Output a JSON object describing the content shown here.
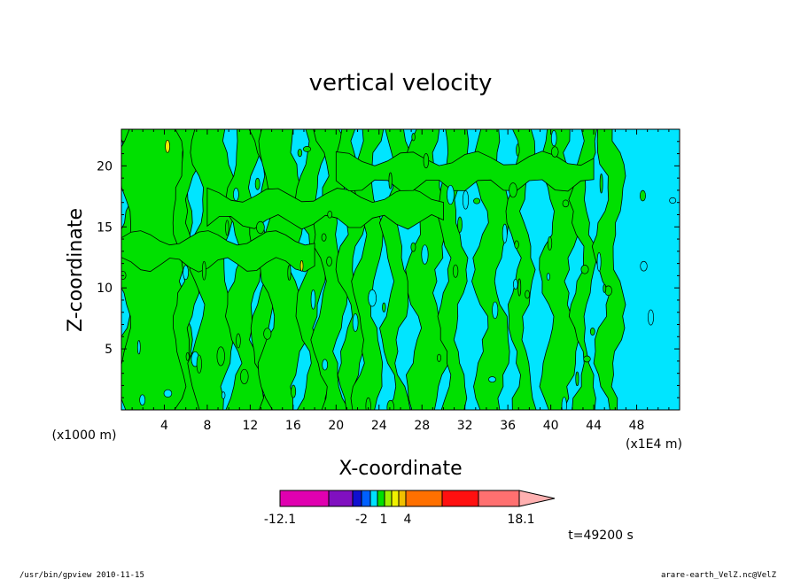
{
  "chart_data": {
    "type": "heatmap",
    "title": "vertical velocity",
    "xlabel": "X-coordinate",
    "ylabel": "Z-coordinate",
    "x_unit": "(x1000 m)",
    "x_scale_note": "(x1E4 m)",
    "xlim": [
      0,
      52
    ],
    "ylim": [
      0,
      23
    ],
    "x_ticks": [
      "4",
      "8",
      "12",
      "16",
      "20",
      "24",
      "28",
      "32",
      "36",
      "40",
      "44",
      "48"
    ],
    "y_ticks": [
      "5",
      "10",
      "15",
      "20"
    ],
    "x_tick_values": [
      4,
      8,
      12,
      16,
      20,
      24,
      28,
      32,
      36,
      40,
      44,
      48
    ],
    "y_tick_values": [
      5,
      10,
      15,
      20
    ],
    "time_label": "t=49200 s",
    "colorbar": {
      "labels": [
        "-12.1",
        "-2",
        "1",
        "4",
        "18.1"
      ],
      "colors": [
        "#e000b0",
        "#8010c0",
        "#1010d0",
        "#0060ff",
        "#00e0ff",
        "#00e000",
        "#a0f000",
        "#f0f000",
        "#f0c000",
        "#ff7000",
        "#ff1010",
        "#ff7070",
        "#ffb0b0"
      ]
    },
    "regions": [
      {
        "level": "positive",
        "color": "#00e000"
      },
      {
        "level": "negative",
        "color": "#00e5ff"
      }
    ]
  },
  "footer": {
    "left": "/usr/bin/gpview  2010-11-15",
    "right": "arare-earth_VelZ.nc@VelZ"
  }
}
